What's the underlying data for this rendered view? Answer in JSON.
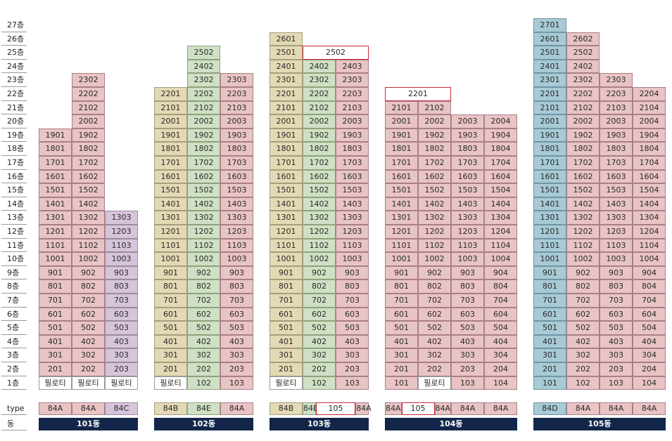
{
  "floor_labels": [
    "27층",
    "26층",
    "25층",
    "24층",
    "23층",
    "22층",
    "21층",
    "20층",
    "19층",
    "18층",
    "17층",
    "16층",
    "15층",
    "14층",
    "13층",
    "12층",
    "11층",
    "10층",
    "9층",
    "8층",
    "7층",
    "6층",
    "5층",
    "4층",
    "3층",
    "2층",
    "1층"
  ],
  "row_labels": {
    "type": "type",
    "dong": "동"
  },
  "buildings": [
    {
      "name": "101동",
      "columns": [
        {
          "floors": [
            1,
            19
          ],
          "color": "pink",
          "ground": "필로티",
          "type": "84A"
        },
        {
          "floors": [
            1,
            23
          ],
          "color": "pink",
          "ground": "필로티",
          "type": "84A"
        },
        {
          "floors": [
            1,
            13
          ],
          "color": "lav",
          "ground": "필로티",
          "type": "84C"
        }
      ],
      "overlays": []
    },
    {
      "name": "102동",
      "columns": [
        {
          "floors": [
            1,
            22
          ],
          "color": "beige",
          "ground": "필로티",
          "type": "84B"
        },
        {
          "floors": [
            1,
            25
          ],
          "color": "green",
          "type": "84E"
        },
        {
          "floors": [
            1,
            23
          ],
          "color": "pink",
          "type": "84A"
        }
      ],
      "overlays": []
    },
    {
      "name": "103동",
      "columns": [
        {
          "floors": [
            1,
            26
          ],
          "color": "beige",
          "ground": "필로티",
          "type": "84B"
        },
        {
          "floors": [
            1,
            24
          ],
          "color": "green",
          "type": "84E"
        },
        {
          "floors": [
            1,
            24
          ],
          "color": "pink",
          "type": "84A"
        }
      ],
      "overlays": [
        {
          "floor": 25,
          "from_col": 1,
          "span": 2,
          "label": "2502"
        }
      ],
      "type_override": [
        {
          "label": "84B",
          "from": 0,
          "span": 1,
          "color": "beige"
        },
        {
          "label": "84E",
          "from": 1,
          "span": 0.4,
          "color": "green"
        },
        {
          "label": "105",
          "from": 1.4,
          "span": 1.2,
          "color": "redbox"
        },
        {
          "label": "84A",
          "from": 2.6,
          "span": 0.4,
          "color": "pink"
        }
      ]
    },
    {
      "name": "104동",
      "columns": [
        {
          "floors": [
            1,
            21
          ],
          "color": "pink",
          "type": "84A"
        },
        {
          "floors": [
            1,
            21
          ],
          "color": "pink",
          "ground": "필로티",
          "type": "84A"
        },
        {
          "floors": [
            1,
            20
          ],
          "color": "pink",
          "type": "84A"
        },
        {
          "floors": [
            1,
            20
          ],
          "color": "pink",
          "type": "84A"
        }
      ],
      "overlays": [
        {
          "floor": 22,
          "from_col": 0,
          "span": 2,
          "label": "2201"
        }
      ],
      "type_override": [
        {
          "label": "84A",
          "from": 0,
          "span": 0.5,
          "color": "pink"
        },
        {
          "label": "105",
          "from": 0.5,
          "span": 1,
          "color": "redbox"
        },
        {
          "label": "84A",
          "from": 1.5,
          "span": 0.5,
          "color": "pink"
        },
        {
          "label": "84A",
          "from": 2,
          "span": 1,
          "color": "pink"
        },
        {
          "label": "84A",
          "from": 3,
          "span": 1,
          "color": "pink"
        }
      ]
    },
    {
      "name": "105동",
      "columns": [
        {
          "floors": [
            1,
            27
          ],
          "color": "blue",
          "type": "84D"
        },
        {
          "floors": [
            1,
            26
          ],
          "color": "pink",
          "type": "84A"
        },
        {
          "floors": [
            1,
            23
          ],
          "color": "pink",
          "type": "84A"
        },
        {
          "floors": [
            1,
            22
          ],
          "color": "pink",
          "type": "84A"
        }
      ],
      "overlays": []
    }
  ]
}
